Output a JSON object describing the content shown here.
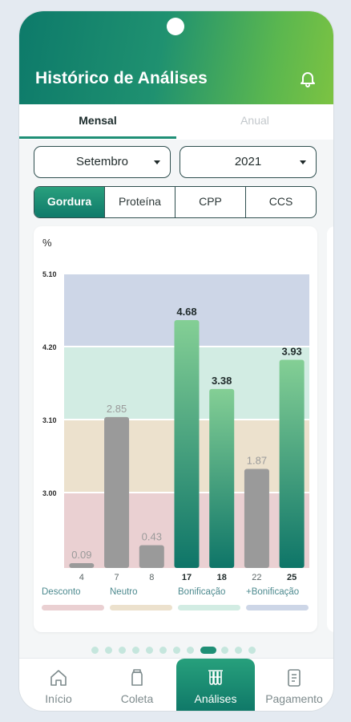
{
  "header": {
    "title": "Histórico de Análises",
    "bell_icon": "bell-icon"
  },
  "tabs": [
    {
      "label": "Mensal",
      "active": true
    },
    {
      "label": "Anual",
      "active": false
    }
  ],
  "filters": {
    "month": "Setembro",
    "year": "2021"
  },
  "segments": [
    {
      "label": "Gordura",
      "active": true
    },
    {
      "label": "Proteína",
      "active": false
    },
    {
      "label": "CPP",
      "active": false
    },
    {
      "label": "CCS",
      "active": false
    }
  ],
  "chart_data": {
    "type": "bar",
    "ylabel": "%",
    "y_ticks": [
      "5.10",
      "4.20",
      "3.10",
      "3.00"
    ],
    "categories": [
      "4",
      "7",
      "8",
      "17",
      "18",
      "22",
      "25"
    ],
    "values": [
      0.09,
      2.85,
      0.43,
      4.68,
      3.38,
      1.87,
      3.93
    ],
    "value_labels": [
      "0.09",
      "2.85",
      "0.43",
      "4.68",
      "3.38",
      "1.87",
      "3.93"
    ],
    "bar_kind": [
      "gray",
      "gray",
      "gray",
      "green",
      "green",
      "gray",
      "green"
    ],
    "ylim": [
      0,
      5.1
    ],
    "bands": [
      {
        "name": "Desconto",
        "color": "#ead0d2"
      },
      {
        "name": "Neutro",
        "color": "#ece1cd"
      },
      {
        "name": "Bonificação",
        "color": "#d2ece3"
      },
      {
        "name": "+Bonificação",
        "color": "#cdd6e7"
      }
    ]
  },
  "pager": {
    "count": 12,
    "active_index": 8
  },
  "bottom_nav": [
    {
      "label": "Início",
      "icon": "home-icon",
      "active": false
    },
    {
      "label": "Coleta",
      "icon": "milk-can-icon",
      "active": false
    },
    {
      "label": "Análises",
      "icon": "test-tubes-icon",
      "active": true
    },
    {
      "label": "Pagamento",
      "icon": "receipt-icon",
      "active": false
    }
  ],
  "colors": {
    "accent": "#1f8f76",
    "bar_gray": "#9a9a9a",
    "bar_green_top": "#84cf95",
    "bar_green_bottom": "#0e7568"
  }
}
